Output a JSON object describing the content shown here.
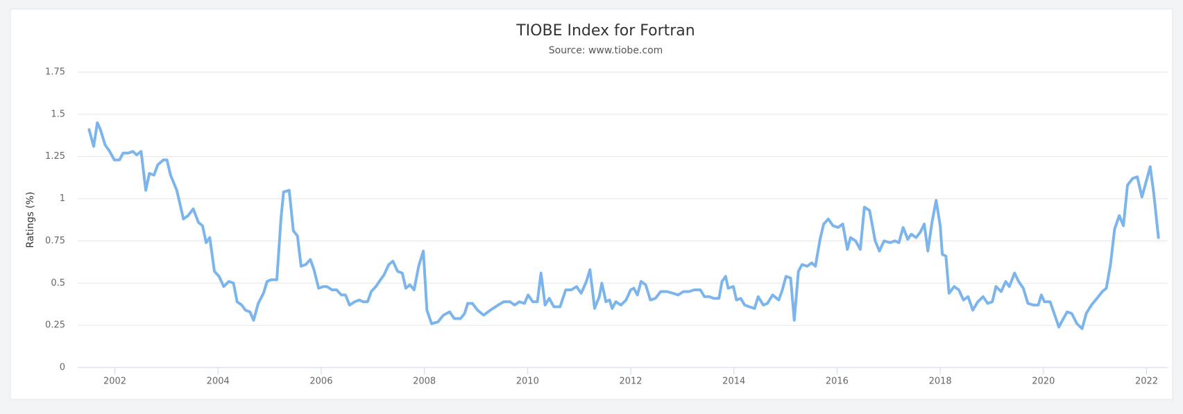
{
  "chart_data": {
    "type": "line",
    "title": "TIOBE Index for Fortran",
    "subtitle": "Source: www.tiobe.com",
    "y_label": "Ratings (%)",
    "x": [
      2001.5,
      2001.59,
      2001.66,
      2001.72,
      2001.81,
      2001.9,
      2001.99,
      2002.09,
      2002.16,
      2002.26,
      2002.35,
      2002.42,
      2002.51,
      2002.6,
      2002.67,
      2002.76,
      2002.83,
      2002.94,
      2003.01,
      2003.08,
      2003.2,
      2003.33,
      2003.42,
      2003.52,
      2003.62,
      2003.7,
      2003.77,
      2003.84,
      2003.93,
      2004.02,
      2004.11,
      2004.21,
      2004.3,
      2004.37,
      2004.46,
      2004.53,
      2004.62,
      2004.69,
      2004.78,
      2004.88,
      2004.95,
      2005.03,
      2005.14,
      2005.22,
      2005.27,
      2005.38,
      2005.46,
      2005.54,
      2005.61,
      2005.7,
      2005.79,
      2005.86,
      2005.95,
      2006.04,
      2006.11,
      2006.21,
      2006.3,
      2006.39,
      2006.47,
      2006.55,
      2006.65,
      2006.74,
      2006.81,
      2006.9,
      2006.97,
      2007.06,
      2007.15,
      2007.22,
      2007.31,
      2007.39,
      2007.48,
      2007.57,
      2007.64,
      2007.72,
      2007.8,
      2007.89,
      2007.98,
      2008.05,
      2008.14,
      2008.26,
      2008.37,
      2008.49,
      2008.58,
      2008.7,
      2008.78,
      2008.84,
      2008.93,
      2009.03,
      2009.15,
      2009.28,
      2009.43,
      2009.54,
      2009.66,
      2009.75,
      2009.84,
      2009.94,
      2010.01,
      2010.1,
      2010.19,
      2010.26,
      2010.34,
      2010.42,
      2010.51,
      2010.63,
      2010.74,
      2010.85,
      2010.95,
      2011.04,
      2011.14,
      2011.21,
      2011.3,
      2011.39,
      2011.44,
      2011.52,
      2011.59,
      2011.64,
      2011.71,
      2011.81,
      2011.91,
      2012.0,
      2012.06,
      2012.13,
      2012.2,
      2012.29,
      2012.38,
      2012.48,
      2012.58,
      2012.7,
      2012.82,
      2012.92,
      2013.02,
      2013.13,
      2013.23,
      2013.35,
      2013.43,
      2013.52,
      2013.61,
      2013.71,
      2013.77,
      2013.84,
      2013.89,
      2013.99,
      2014.05,
      2014.13,
      2014.21,
      2014.3,
      2014.4,
      2014.47,
      2014.57,
      2014.65,
      2014.75,
      2014.87,
      2014.94,
      2015.01,
      2015.1,
      2015.17,
      2015.25,
      2015.32,
      2015.42,
      2015.51,
      2015.58,
      2015.67,
      2015.74,
      2015.83,
      2015.92,
      2016.02,
      2016.11,
      2016.2,
      2016.26,
      2016.36,
      2016.45,
      2016.53,
      2016.63,
      2016.74,
      2016.82,
      2016.91,
      2017.03,
      2017.12,
      2017.2,
      2017.28,
      2017.37,
      2017.44,
      2017.53,
      2017.61,
      2017.69,
      2017.76,
      2017.84,
      2017.92,
      2018.0,
      2018.04,
      2018.11,
      2018.17,
      2018.27,
      2018.36,
      2018.45,
      2018.54,
      2018.63,
      2018.73,
      2018.83,
      2018.92,
      2019.01,
      2019.08,
      2019.18,
      2019.27,
      2019.34,
      2019.44,
      2019.52,
      2019.61,
      2019.7,
      2019.81,
      2019.9,
      2019.96,
      2020.02,
      2020.13,
      2020.22,
      2020.3,
      2020.37,
      2020.46,
      2020.55,
      2020.65,
      2020.75,
      2020.83,
      2020.93,
      2021.04,
      2021.14,
      2021.22,
      2021.3,
      2021.38,
      2021.47,
      2021.55,
      2021.63,
      2021.73,
      2021.82,
      2021.91,
      2022.0,
      2022.07,
      2022.14,
      2022.23
    ],
    "values": [
      1.41,
      1.31,
      1.45,
      1.41,
      1.32,
      1.28,
      1.23,
      1.23,
      1.27,
      1.27,
      1.28,
      1.26,
      1.28,
      1.05,
      1.15,
      1.14,
      1.2,
      1.23,
      1.23,
      1.14,
      1.05,
      0.88,
      0.9,
      0.94,
      0.86,
      0.84,
      0.74,
      0.77,
      0.57,
      0.54,
      0.48,
      0.51,
      0.5,
      0.39,
      0.37,
      0.34,
      0.33,
      0.28,
      0.38,
      0.44,
      0.51,
      0.52,
      0.52,
      0.88,
      1.04,
      1.05,
      0.81,
      0.78,
      0.6,
      0.61,
      0.64,
      0.58,
      0.47,
      0.48,
      0.48,
      0.46,
      0.46,
      0.43,
      0.43,
      0.37,
      0.39,
      0.4,
      0.39,
      0.39,
      0.45,
      0.48,
      0.52,
      0.55,
      0.61,
      0.63,
      0.57,
      0.56,
      0.47,
      0.49,
      0.46,
      0.6,
      0.69,
      0.34,
      0.26,
      0.27,
      0.31,
      0.33,
      0.29,
      0.29,
      0.32,
      0.38,
      0.38,
      0.34,
      0.31,
      0.34,
      0.37,
      0.39,
      0.39,
      0.37,
      0.39,
      0.38,
      0.43,
      0.39,
      0.39,
      0.56,
      0.37,
      0.41,
      0.36,
      0.36,
      0.46,
      0.46,
      0.48,
      0.44,
      0.51,
      0.58,
      0.35,
      0.42,
      0.5,
      0.39,
      0.4,
      0.35,
      0.39,
      0.37,
      0.4,
      0.46,
      0.47,
      0.43,
      0.51,
      0.49,
      0.4,
      0.41,
      0.45,
      0.45,
      0.44,
      0.43,
      0.45,
      0.45,
      0.46,
      0.46,
      0.42,
      0.42,
      0.41,
      0.41,
      0.51,
      0.54,
      0.47,
      0.48,
      0.4,
      0.41,
      0.37,
      0.36,
      0.35,
      0.42,
      0.37,
      0.38,
      0.43,
      0.4,
      0.46,
      0.54,
      0.53,
      0.28,
      0.57,
      0.61,
      0.6,
      0.62,
      0.6,
      0.76,
      0.85,
      0.88,
      0.84,
      0.83,
      0.85,
      0.7,
      0.77,
      0.75,
      0.7,
      0.95,
      0.93,
      0.75,
      0.69,
      0.75,
      0.74,
      0.75,
      0.74,
      0.83,
      0.76,
      0.79,
      0.77,
      0.8,
      0.85,
      0.69,
      0.86,
      0.99,
      0.84,
      0.67,
      0.66,
      0.44,
      0.48,
      0.46,
      0.4,
      0.42,
      0.34,
      0.39,
      0.42,
      0.38,
      0.39,
      0.48,
      0.45,
      0.51,
      0.48,
      0.56,
      0.51,
      0.47,
      0.38,
      0.37,
      0.37,
      0.43,
      0.39,
      0.39,
      0.31,
      0.24,
      0.28,
      0.33,
      0.32,
      0.26,
      0.23,
      0.32,
      0.37,
      0.41,
      0.45,
      0.47,
      0.61,
      0.82,
      0.9,
      0.84,
      1.08,
      1.12,
      1.13,
      1.01,
      1.11,
      1.19,
      1.03,
      0.77
    ],
    "color": "#7cb5ec",
    "xlim": [
      2001.28,
      2022.41
    ],
    "ylim": [
      0,
      1.75
    ],
    "xticks": [
      2002,
      2004,
      2006,
      2008,
      2010,
      2012,
      2014,
      2016,
      2018,
      2020,
      2022
    ],
    "yticks": [
      0,
      0.25,
      0.5,
      0.75,
      1,
      1.25,
      1.5,
      1.75
    ],
    "grid": true
  }
}
